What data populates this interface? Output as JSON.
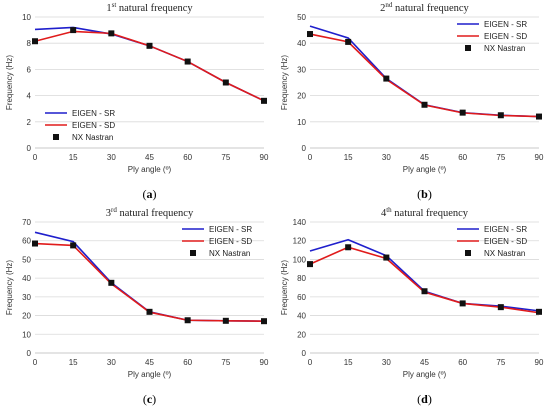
{
  "chart_data": [
    {
      "type": "line",
      "title": "1st natural frequency",
      "title_main": "1",
      "title_sup": "st",
      "title_rest": " natural frequency",
      "xlabel": "Ply angle (º)",
      "ylabel": "Frequency (Hz)",
      "x": [
        0,
        15,
        30,
        45,
        60,
        75,
        90
      ],
      "xticks": [
        0,
        15,
        30,
        45,
        60,
        75,
        90
      ],
      "yticks": [
        0,
        2,
        4,
        6,
        8,
        10
      ],
      "ylim": [
        0,
        10
      ],
      "legend_position": "bottom-left",
      "caption": "(a)",
      "series": [
        {
          "name": "EIGEN - SR",
          "color": "#1f1fcc",
          "values": [
            9.05,
            9.2,
            8.7,
            7.8,
            6.6,
            5.0,
            3.6
          ]
        },
        {
          "name": "EIGEN - SD",
          "color": "#e01b1b",
          "values": [
            8.15,
            8.9,
            8.75,
            7.8,
            6.6,
            5.0,
            3.6
          ]
        },
        {
          "name": "NX Nastran",
          "color": "#111111",
          "marker": "square",
          "values": [
            8.15,
            9.0,
            8.75,
            7.8,
            6.6,
            5.0,
            3.6
          ]
        }
      ]
    },
    {
      "type": "line",
      "title": "2nd natural frequency",
      "title_main": "2",
      "title_sup": "nd",
      "title_rest": " natural frequency",
      "xlabel": "Ply angle (º)",
      "ylabel": "Frequency (Hz)",
      "x": [
        0,
        15,
        30,
        45,
        60,
        75,
        90
      ],
      "xticks": [
        0,
        15,
        30,
        45,
        60,
        75,
        90
      ],
      "yticks": [
        0,
        10,
        20,
        30,
        40,
        50
      ],
      "ylim": [
        0,
        50
      ],
      "legend_position": "top-right",
      "caption": "(b)",
      "series": [
        {
          "name": "EIGEN - SR",
          "color": "#1f1fcc",
          "values": [
            46.5,
            42.0,
            26.5,
            16.5,
            13.5,
            12.5,
            12.0
          ]
        },
        {
          "name": "EIGEN - SD",
          "color": "#e01b1b",
          "values": [
            43.5,
            40.5,
            26.2,
            16.4,
            13.4,
            12.4,
            12.0
          ]
        },
        {
          "name": "NX Nastran",
          "color": "#111111",
          "marker": "square",
          "values": [
            43.5,
            40.5,
            26.5,
            16.5,
            13.5,
            12.5,
            12.0
          ]
        }
      ]
    },
    {
      "type": "line",
      "title": "3rd natural frequency",
      "title_main": "3",
      "title_sup": "rd",
      "title_rest": " natural frequency",
      "xlabel": "Ply angle (º)",
      "ylabel": "Frequency (Hz)",
      "x": [
        0,
        15,
        30,
        45,
        60,
        75,
        90
      ],
      "xticks": [
        0,
        15,
        30,
        45,
        60,
        75,
        90
      ],
      "yticks": [
        0,
        10,
        20,
        30,
        40,
        50,
        60,
        70
      ],
      "ylim": [
        0,
        70
      ],
      "legend_position": "top-right",
      "caption": "(c)",
      "series": [
        {
          "name": "EIGEN - SR",
          "color": "#1f1fcc",
          "values": [
            64.5,
            59.5,
            37.5,
            22.0,
            17.5,
            17.2,
            17.0
          ]
        },
        {
          "name": "EIGEN - SD",
          "color": "#e01b1b",
          "values": [
            58.5,
            57.5,
            37.0,
            21.8,
            17.5,
            17.2,
            17.0
          ]
        },
        {
          "name": "NX Nastran",
          "color": "#111111",
          "marker": "square",
          "values": [
            58.5,
            57.5,
            37.5,
            22.0,
            17.5,
            17.2,
            17.0
          ]
        }
      ]
    },
    {
      "type": "line",
      "title": "4th natural frequency",
      "title_main": "4",
      "title_sup": "th",
      "title_rest": " natural frequency",
      "xlabel": "Ply angle (º)",
      "ylabel": "Frequency (Hz)",
      "x": [
        0,
        15,
        30,
        45,
        60,
        75,
        90
      ],
      "xticks": [
        0,
        15,
        30,
        45,
        60,
        75,
        90
      ],
      "yticks": [
        0,
        20,
        40,
        60,
        80,
        100,
        120,
        140
      ],
      "ylim": [
        0,
        140
      ],
      "legend_position": "top-right",
      "caption": "(d)",
      "series": [
        {
          "name": "EIGEN - SR",
          "color": "#1f1fcc",
          "values": [
            109,
            121,
            104,
            66,
            53,
            50,
            45
          ]
        },
        {
          "name": "EIGEN - SD",
          "color": "#e01b1b",
          "values": [
            95,
            113,
            101,
            65,
            53,
            49,
            43
          ]
        },
        {
          "name": "NX Nastran",
          "color": "#111111",
          "marker": "square",
          "values": [
            95,
            113,
            102,
            66,
            53,
            49,
            44
          ]
        }
      ]
    }
  ]
}
